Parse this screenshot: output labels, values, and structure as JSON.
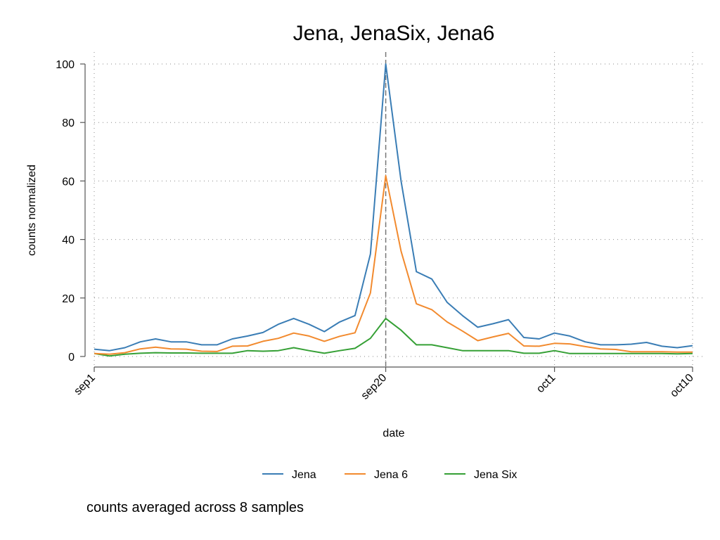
{
  "chart_data": {
    "type": "line",
    "title": "Jena, JenaSix, Jena6",
    "xlabel": "date",
    "ylabel": "counts normalized",
    "note": "counts averaged across 8 samples",
    "x_tick_labels": [
      "sep1",
      "sep20",
      "oct1",
      "oct10"
    ],
    "x_tick_days": [
      0,
      19,
      30,
      39
    ],
    "x_range_days": [
      0,
      39
    ],
    "x_dates": [
      "2007-09-01",
      "2007-09-02",
      "2007-09-03",
      "2007-09-04",
      "2007-09-05",
      "2007-09-06",
      "2007-09-07",
      "2007-09-08",
      "2007-09-09",
      "2007-09-10",
      "2007-09-11",
      "2007-09-12",
      "2007-09-13",
      "2007-09-14",
      "2007-09-15",
      "2007-09-16",
      "2007-09-17",
      "2007-09-18",
      "2007-09-19",
      "2007-09-20",
      "2007-09-21",
      "2007-09-22",
      "2007-09-23",
      "2007-09-24",
      "2007-09-25",
      "2007-09-26",
      "2007-09-27",
      "2007-09-28",
      "2007-09-29",
      "2007-09-30",
      "2007-10-01",
      "2007-10-02",
      "2007-10-03",
      "2007-10-04",
      "2007-10-05",
      "2007-10-06",
      "2007-10-07",
      "2007-10-08",
      "2007-10-09",
      "2007-10-10"
    ],
    "ylim": [
      0,
      100
    ],
    "y_ticks": [
      0,
      20,
      40,
      60,
      80,
      100
    ],
    "reference_line_date": "sep20",
    "grid": true,
    "legend_position": "bottom",
    "series": [
      {
        "name": "Jena",
        "color": "#3a7db5",
        "values": [
          2.5,
          2.0,
          3.0,
          5.0,
          6.0,
          5.0,
          5.0,
          4.0,
          4.0,
          6.0,
          7.0,
          8.2,
          11.0,
          13.0,
          11.0,
          8.5,
          11.8,
          14.0,
          35.0,
          100.0,
          60.0,
          29.0,
          26.5,
          18.5,
          14.0,
          10.0,
          11.2,
          12.6,
          6.5,
          6.0,
          8.0,
          7.0,
          5.0,
          4.0,
          4.0,
          4.2,
          4.8,
          3.5,
          3.0,
          3.7
        ]
      },
      {
        "name": "Jena 6",
        "color": "#f28a2e",
        "values": [
          1.0,
          0.8,
          1.3,
          2.6,
          3.2,
          2.6,
          2.5,
          1.8,
          1.7,
          3.5,
          3.6,
          5.2,
          6.2,
          8.0,
          7.0,
          5.2,
          6.9,
          8.1,
          21.7,
          61.8,
          36.0,
          18.0,
          16.0,
          11.8,
          8.7,
          5.4,
          6.7,
          7.9,
          3.6,
          3.5,
          4.5,
          4.3,
          3.4,
          2.6,
          2.4,
          1.6,
          1.6,
          1.6,
          1.5,
          1.5
        ]
      },
      {
        "name": "Jena Six",
        "color": "#35a035",
        "values": [
          1.0,
          0.2,
          0.8,
          1.1,
          1.3,
          1.2,
          1.2,
          1.1,
          1.1,
          1.1,
          2.0,
          1.8,
          2.0,
          3.0,
          2.0,
          1.1,
          2.0,
          2.8,
          6.2,
          13.0,
          9.0,
          4.0,
          4.0,
          3.0,
          2.0,
          2.0,
          2.0,
          2.0,
          1.1,
          1.1,
          2.0,
          1.0,
          1.0,
          1.0,
          1.0,
          1.0,
          1.0,
          1.0,
          0.9,
          1.0
        ]
      }
    ]
  }
}
